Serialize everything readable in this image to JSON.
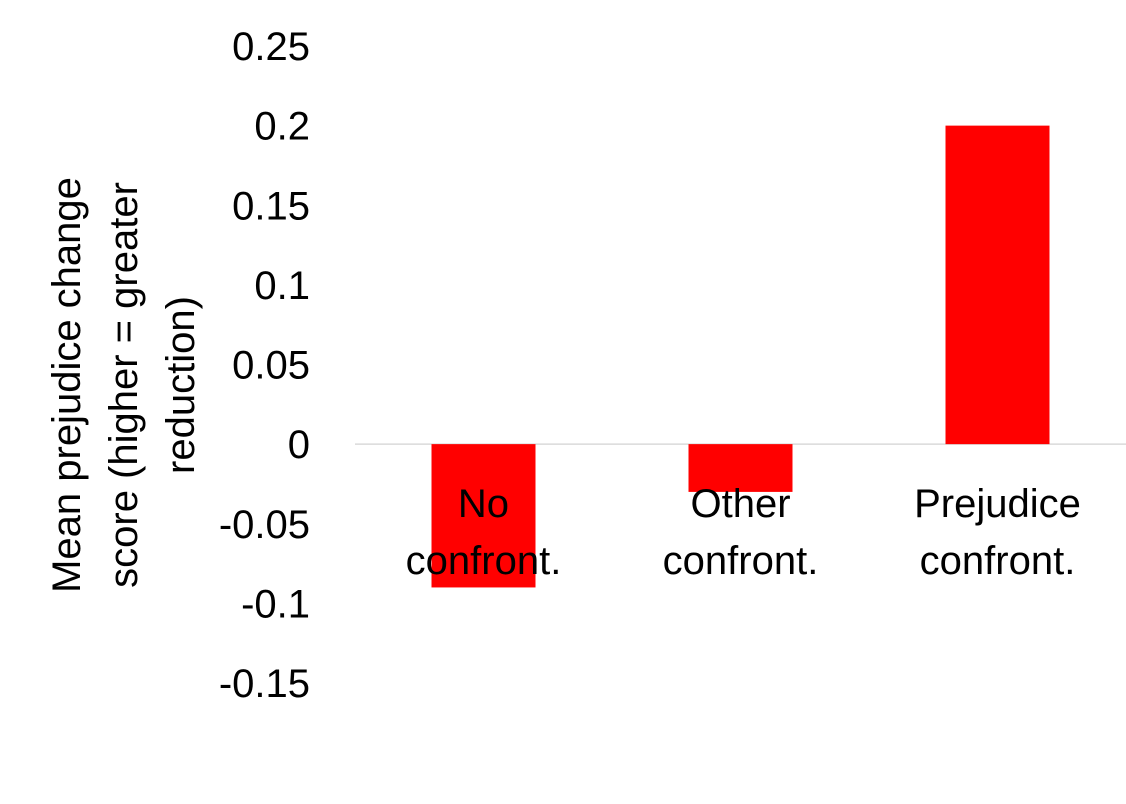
{
  "chart_data": {
    "type": "bar",
    "categories": [
      [
        "No",
        "confront."
      ],
      [
        "Other",
        "confront."
      ],
      [
        "Prejudice",
        "confront."
      ]
    ],
    "values": [
      -0.09,
      -0.03,
      0.2
    ],
    "ylabel": [
      "Mean prejudice change",
      "score (higher = greater",
      "reduction)"
    ],
    "xlabel": "",
    "ylim": [
      -0.15,
      0.25
    ],
    "yticks": [
      "0.25",
      "0.2",
      "0.15",
      "0.1",
      "0.05",
      "0",
      "-0.05",
      "-0.1",
      "-0.15"
    ],
    "grid": false,
    "legend": "none",
    "bar_color": "#ff0000",
    "baseline_color": "#d9d9d9"
  }
}
